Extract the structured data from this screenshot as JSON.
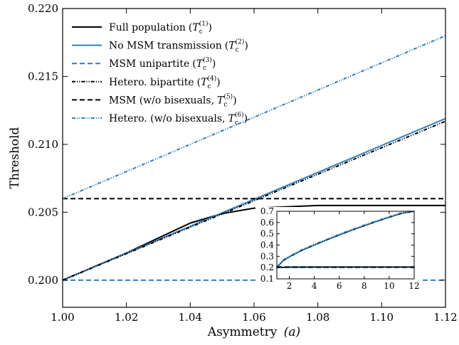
{
  "chart_data": [
    {
      "type": "line",
      "xlabel": "Asymmetry",
      "xlabel_var": "(a)",
      "ylabel": "Threshold",
      "xlim": [
        1.0,
        1.12
      ],
      "ylim": [
        0.198,
        0.22
      ],
      "x_ticks": [
        1.0,
        1.02,
        1.04,
        1.06,
        1.08,
        1.1,
        1.12
      ],
      "x_tick_labels": [
        "1.00",
        "1.02",
        "1.04",
        "1.06",
        "1.08",
        "1.10",
        "1.12"
      ],
      "y_ticks": [
        0.2,
        0.205,
        0.21,
        0.215,
        0.22
      ],
      "y_tick_labels": [
        "0.200",
        "0.205",
        "0.210",
        "0.215",
        "0.220"
      ],
      "grid": false,
      "legend_position": "top-left",
      "series": [
        {
          "name": "Full population",
          "sym": "T",
          "sub": "c",
          "sup": "(1)",
          "color": "#000000",
          "dash": "solid",
          "x": [
            1.0,
            1.01,
            1.02,
            1.03,
            1.04,
            1.05,
            1.06,
            1.07,
            1.08,
            1.09,
            1.1,
            1.11,
            1.12
          ],
          "y": [
            0.2,
            0.201,
            0.202,
            0.2031,
            0.2042,
            0.2049,
            0.2053,
            0.2054,
            0.2055,
            0.2055,
            0.2055,
            0.2055,
            0.2055
          ]
        },
        {
          "name": "No MSM transmission",
          "sym": "T",
          "sub": "c",
          "sup": "(2)",
          "color": "#2f7fc1",
          "dash": "solid",
          "x": [
            1.0,
            1.12
          ],
          "y": [
            0.2,
            0.2119
          ]
        },
        {
          "name": "MSM unipartite",
          "sym": "T",
          "sub": "c",
          "sup": "(3)",
          "color": "#2f7fc1",
          "dash": "dashed",
          "x": [
            1.0,
            1.12
          ],
          "y": [
            0.2,
            0.2
          ]
        },
        {
          "name": "Hetero. bipartite",
          "sym": "T",
          "sub": "c",
          "sup": "(4)",
          "color": "#000000",
          "dash": "dashdotdot",
          "x": [
            1.0,
            1.12
          ],
          "y": [
            0.2,
            0.2117
          ]
        },
        {
          "name": "MSM (w/o bisexuals,",
          "sym": "T",
          "sub": "c",
          "sup": "(5)",
          "color": "#000000",
          "dash": "dashed",
          "x": [
            1.0,
            1.12
          ],
          "y": [
            0.206,
            0.206
          ]
        },
        {
          "name": "Hetero. (w/o bisexuals,",
          "sym": "T",
          "sub": "c",
          "sup": "(6)",
          "color": "#2f7fc1",
          "dash": "dashdotdot",
          "x": [
            1.0,
            1.12
          ],
          "y": [
            0.206,
            0.218
          ]
        }
      ]
    },
    {
      "type": "line",
      "xlim": [
        1,
        12
      ],
      "ylim": [
        0.1,
        0.7
      ],
      "x_ticks": [
        2,
        4,
        6,
        8,
        10,
        12
      ],
      "x_tick_labels": [
        "2",
        "4",
        "6",
        "8",
        "10",
        "12"
      ],
      "y_ticks": [
        0.1,
        0.2,
        0.3,
        0.4,
        0.5,
        0.6,
        0.7
      ],
      "y_tick_labels": [
        "0.1",
        "0.2",
        "0.3",
        "0.4",
        "0.5",
        "0.6",
        "0.7"
      ],
      "grid": false,
      "series": [
        {
          "color": "#2f7fc1",
          "dash": "solid",
          "x": [
            1,
            1.5,
            2,
            3,
            4,
            5,
            6,
            7,
            8,
            9,
            10,
            11,
            12
          ],
          "y": [
            0.2,
            0.262,
            0.295,
            0.353,
            0.4,
            0.446,
            0.49,
            0.532,
            0.572,
            0.61,
            0.647,
            0.682,
            0.7
          ]
        },
        {
          "color": "#000000",
          "dash": "dashdotdot",
          "x": [
            1,
            1.5,
            2,
            3,
            4,
            5,
            6,
            7,
            8,
            9,
            10,
            11,
            12
          ],
          "y": [
            0.2,
            0.262,
            0.295,
            0.353,
            0.4,
            0.446,
            0.49,
            0.532,
            0.572,
            0.61,
            0.647,
            0.682,
            0.7
          ]
        },
        {
          "color": "#2f7fc1",
          "dash": "dashdotdot",
          "x": [
            1,
            1.5,
            2,
            3,
            4,
            5,
            6,
            7,
            8,
            9,
            10,
            11,
            12
          ],
          "y": [
            0.206,
            0.268,
            0.301,
            0.359,
            0.406,
            0.452,
            0.496,
            0.538,
            0.578,
            0.616,
            0.653,
            0.688,
            0.706
          ]
        },
        {
          "color": "#000000",
          "dash": "solid",
          "x": [
            1,
            2,
            4,
            6,
            8,
            10,
            12
          ],
          "y": [
            0.2,
            0.204,
            0.205,
            0.205,
            0.205,
            0.205,
            0.205
          ]
        },
        {
          "color": "#2f7fc1",
          "dash": "dashed",
          "x": [
            1,
            12
          ],
          "y": [
            0.2,
            0.2
          ]
        },
        {
          "color": "#000000",
          "dash": "dashed",
          "x": [
            1,
            12
          ],
          "y": [
            0.206,
            0.206
          ]
        }
      ]
    }
  ]
}
